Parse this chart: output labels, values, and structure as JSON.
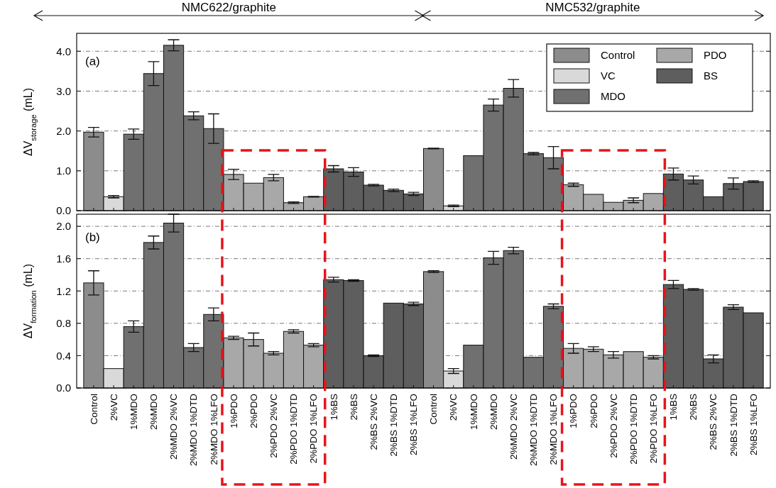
{
  "chart_data": [
    {
      "type": "bar",
      "ylabel": "ΔV$_{storage}$ (mL)",
      "tick_labels": "y",
      "grid": "y",
      "legend": "top right",
      "annotations": [
        "NMC622/graphite",
        "NMC532/graphite",
        "(a)"
      ],
      "categories": [
        null,
        null,
        null,
        null,
        null,
        null,
        null,
        null,
        null,
        null,
        null,
        null,
        null,
        null,
        null,
        null,
        null,
        null,
        null,
        null,
        null,
        null,
        null,
        null,
        null,
        null,
        null,
        null,
        null,
        null,
        null,
        null,
        null,
        null
      ],
      "ylim": [
        0,
        4.45
      ],
      "yticks": [
        {
          "value": 0,
          "label": "0.0"
        },
        {
          "value": 1,
          "label": "1.0"
        },
        {
          "value": 2,
          "label": "2.0"
        },
        {
          "value": 3,
          "label": "3.0"
        },
        {
          "value": 4,
          "label": "4.0"
        }
      ],
      "series": [
        {
          "name": "Control",
          "color": "#8c8c8c",
          "values": [
            1.97,
            null,
            null,
            null,
            null,
            null,
            null,
            null,
            null,
            null,
            null,
            null,
            null,
            null,
            null,
            null,
            null,
            1.56,
            null,
            null,
            null,
            null,
            null,
            null,
            null,
            null,
            null,
            null,
            null,
            null,
            null,
            null,
            null,
            null
          ],
          "errors": [
            0.12,
            null,
            null,
            null,
            null,
            null,
            null,
            null,
            null,
            null,
            null,
            null,
            null,
            null,
            null,
            null,
            null,
            0.01,
            null,
            null,
            null,
            null,
            null,
            null,
            null,
            null,
            null,
            null,
            null,
            null,
            null,
            null,
            null,
            null
          ]
        },
        {
          "name": "VC",
          "color": "#d9d9d9",
          "values": [
            null,
            0.35,
            null,
            null,
            null,
            null,
            null,
            null,
            null,
            null,
            null,
            null,
            null,
            null,
            null,
            null,
            null,
            null,
            0.12,
            null,
            null,
            null,
            null,
            null,
            null,
            null,
            null,
            null,
            null,
            null,
            null,
            null,
            null,
            null
          ],
          "errors": [
            null,
            0.03,
            null,
            null,
            null,
            null,
            null,
            null,
            null,
            null,
            null,
            null,
            null,
            null,
            null,
            null,
            null,
            null,
            0.02,
            null,
            null,
            null,
            null,
            null,
            null,
            null,
            null,
            null,
            null,
            null,
            null,
            null,
            null,
            null
          ]
        },
        {
          "name": "MDO",
          "color": "#707070",
          "values": [
            null,
            null,
            1.92,
            3.44,
            4.15,
            2.38,
            2.06,
            null,
            null,
            null,
            null,
            null,
            null,
            null,
            null,
            null,
            null,
            null,
            null,
            1.38,
            2.65,
            3.07,
            1.43,
            1.33,
            null,
            null,
            null,
            null,
            null,
            null,
            null,
            null,
            null,
            null
          ],
          "errors": [
            null,
            null,
            0.13,
            0.3,
            0.14,
            0.1,
            0.37,
            null,
            null,
            null,
            null,
            null,
            null,
            null,
            null,
            null,
            null,
            null,
            null,
            null,
            0.15,
            0.22,
            0.03,
            0.28,
            null,
            null,
            null,
            null,
            null,
            null,
            null,
            null,
            null,
            null
          ]
        },
        {
          "name": "PDO",
          "color": "#a8a8a8",
          "values": [
            null,
            null,
            null,
            null,
            null,
            null,
            null,
            0.91,
            0.69,
            0.83,
            0.2,
            0.35,
            null,
            null,
            null,
            null,
            null,
            null,
            null,
            null,
            null,
            null,
            null,
            null,
            0.65,
            0.41,
            0.21,
            0.26,
            0.43,
            null,
            null,
            null,
            null,
            null
          ],
          "errors": [
            null,
            null,
            null,
            null,
            null,
            null,
            null,
            0.13,
            null,
            0.08,
            0.02,
            0.01,
            null,
            null,
            null,
            null,
            null,
            null,
            null,
            null,
            null,
            null,
            null,
            null,
            0.04,
            null,
            null,
            0.06,
            null,
            null,
            null,
            null,
            null,
            null
          ]
        },
        {
          "name": "BS",
          "color": "#5e5e5e",
          "values": [
            null,
            null,
            null,
            null,
            null,
            null,
            null,
            null,
            null,
            null,
            null,
            null,
            1.05,
            0.97,
            0.64,
            0.51,
            0.42,
            null,
            null,
            null,
            null,
            null,
            null,
            null,
            null,
            null,
            null,
            null,
            null,
            0.92,
            0.77,
            0.35,
            0.68,
            0.73
          ],
          "errors": [
            null,
            null,
            null,
            null,
            null,
            null,
            null,
            null,
            null,
            null,
            null,
            null,
            0.08,
            0.11,
            0.02,
            0.03,
            0.04,
            null,
            null,
            null,
            null,
            null,
            null,
            null,
            null,
            null,
            null,
            null,
            null,
            0.15,
            0.1,
            null,
            0.14,
            0.02
          ]
        }
      ]
    },
    {
      "type": "bar",
      "ylabel": "ΔV$_{formation}$ (mL)",
      "grid": "y",
      "annotations": [
        "(b)"
      ],
      "categories": [
        "Control",
        "2%VC",
        "1%MDO",
        "2%MDO",
        "2%MDO 2%VC",
        "2%MDO 1%DTD",
        "2%MDO 1%LFO",
        "1%PDO",
        "2%PDO",
        "2%PDO 2%VC",
        "2%PDO 1%DTD",
        "2%PDO 1%LFO",
        "1%BS",
        "2%BS",
        "2%BS 2%VC",
        "2%BS 1%DTD",
        "2%BS 1%LFO",
        "Control",
        "2%VC",
        "1%MDO",
        "2%MDO",
        "2%MDO 2%VC",
        "2%MDO 1%DTD",
        "2%MDO 1%LFO",
        "1%PDO",
        "2%PDO",
        "2%PDO 2%VC",
        "2%PDO 1%DTD",
        "2%PDO 1%LFO",
        "1%BS",
        "2%BS",
        "2%BS 2%VC",
        "2%BS 1%DTD",
        "2%BS 1%LFO"
      ],
      "ylim": [
        0,
        2.15
      ],
      "yticks": [
        {
          "value": 0,
          "label": "0.0"
        },
        {
          "value": 0.4,
          "label": "0.4"
        },
        {
          "value": 0.8,
          "label": "0.8"
        },
        {
          "value": 1.2,
          "label": "1.2"
        },
        {
          "value": 1.6,
          "label": "1.6"
        },
        {
          "value": 2,
          "label": "2.0"
        }
      ],
      "series": [
        {
          "color": "#8c8c8c",
          "values": [
            1.3,
            null,
            null,
            null,
            null,
            null,
            null,
            null,
            null,
            null,
            null,
            null,
            null,
            null,
            null,
            null,
            null,
            1.44,
            null,
            null,
            null,
            null,
            null,
            null,
            null,
            null,
            null,
            null,
            null,
            null,
            null,
            null,
            null,
            null
          ],
          "errors": [
            0.15,
            null,
            null,
            null,
            null,
            null,
            null,
            null,
            null,
            null,
            null,
            null,
            null,
            null,
            null,
            null,
            null,
            0.01,
            null,
            null,
            null,
            null,
            null,
            null,
            null,
            null,
            null,
            null,
            null,
            null,
            null,
            null,
            null,
            null
          ]
        },
        {
          "color": "#d9d9d9",
          "values": [
            null,
            0.24,
            null,
            null,
            null,
            null,
            null,
            null,
            null,
            null,
            null,
            null,
            null,
            null,
            null,
            null,
            null,
            null,
            0.21,
            null,
            null,
            null,
            null,
            null,
            null,
            null,
            null,
            null,
            null,
            null,
            null,
            null,
            null,
            null
          ],
          "errors": [
            null,
            null,
            null,
            null,
            null,
            null,
            null,
            null,
            null,
            null,
            null,
            null,
            null,
            null,
            null,
            null,
            null,
            null,
            0.03,
            null,
            null,
            null,
            null,
            null,
            null,
            null,
            null,
            null,
            null,
            null,
            null,
            null,
            null,
            null
          ]
        },
        {
          "color": "#707070",
          "values": [
            null,
            null,
            0.76,
            1.8,
            2.04,
            0.5,
            0.91,
            null,
            null,
            null,
            null,
            null,
            null,
            null,
            null,
            null,
            null,
            null,
            null,
            0.53,
            1.61,
            1.7,
            0.38,
            1.01,
            null,
            null,
            null,
            null,
            null,
            null,
            null,
            null,
            null,
            null
          ],
          "errors": [
            null,
            null,
            0.07,
            0.08,
            0.11,
            0.05,
            0.08,
            null,
            null,
            null,
            null,
            null,
            null,
            null,
            null,
            null,
            null,
            null,
            null,
            null,
            0.08,
            0.04,
            null,
            0.03,
            null,
            null,
            null,
            null,
            null,
            null,
            null,
            null,
            null,
            null
          ]
        },
        {
          "color": "#a8a8a8",
          "values": [
            null,
            null,
            null,
            null,
            null,
            null,
            null,
            0.62,
            0.6,
            0.43,
            0.7,
            0.53,
            null,
            null,
            null,
            null,
            null,
            null,
            null,
            null,
            null,
            null,
            null,
            null,
            0.49,
            0.48,
            0.41,
            0.45,
            0.38,
            null,
            null,
            null,
            null,
            null
          ],
          "errors": [
            null,
            null,
            null,
            null,
            null,
            null,
            null,
            0.02,
            0.08,
            0.02,
            0.02,
            0.02,
            null,
            null,
            null,
            null,
            null,
            null,
            null,
            null,
            null,
            null,
            null,
            null,
            0.06,
            0.03,
            0.04,
            null,
            0.02,
            null,
            null,
            null,
            null,
            null
          ]
        },
        {
          "color": "#5e5e5e",
          "values": [
            null,
            null,
            null,
            null,
            null,
            null,
            null,
            null,
            null,
            null,
            null,
            null,
            1.34,
            1.33,
            0.4,
            1.05,
            1.04,
            null,
            null,
            null,
            null,
            null,
            null,
            null,
            null,
            null,
            null,
            null,
            null,
            1.28,
            1.22,
            0.36,
            1.0,
            0.93
          ],
          "errors": [
            null,
            null,
            null,
            null,
            null,
            null,
            null,
            null,
            null,
            null,
            null,
            null,
            0.03,
            0.01,
            0.01,
            null,
            0.02,
            null,
            null,
            null,
            null,
            null,
            null,
            null,
            null,
            null,
            null,
            null,
            null,
            0.05,
            0.01,
            0.05,
            0.03,
            null
          ]
        }
      ]
    }
  ]
}
